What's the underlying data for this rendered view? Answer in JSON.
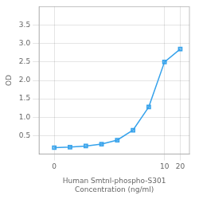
{
  "chart_data": {
    "type": "line",
    "xlabel": "Human Smtnl-phospho-S301\nConcentration (ng/ml)",
    "ylabel": "OD",
    "x": [
      0.078,
      0.156,
      0.313,
      0.625,
      1.25,
      2.5,
      5,
      10,
      20
    ],
    "values": [
      0.175,
      0.19,
      0.22,
      0.27,
      0.38,
      0.65,
      1.28,
      2.5,
      2.85
    ],
    "marker": "square",
    "log": "x",
    "xlim": [
      0.04,
      30
    ],
    "xticks": [
      {
        "value": 0.078,
        "label": "0"
      },
      10,
      20
    ],
    "ylim": [
      0,
      4.0
    ],
    "yticks": [
      0.5,
      {
        "value": 1.0,
        "label": "1.0"
      },
      1.5,
      {
        "value": 2.0,
        "label": "2.0"
      },
      2.5,
      {
        "value": 3.0,
        "label": "3.0"
      },
      3.5
    ],
    "grid": true
  }
}
